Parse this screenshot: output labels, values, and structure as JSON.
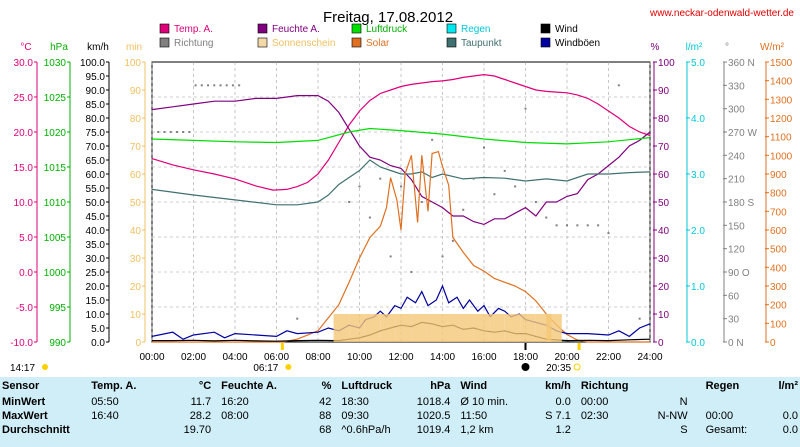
{
  "header": {
    "title": "Freitag, 17.08.2012",
    "site_url": "www.neckar-odenwald-wetter.de"
  },
  "chart_data": {
    "type": "line",
    "title": "Freitag, 17.08.2012",
    "x_ticks": [
      "00:00",
      "02:00",
      "04:00",
      "06:00",
      "08:00",
      "10:00",
      "12:00",
      "14:00",
      "16:00",
      "18:00",
      "20:00",
      "22:00",
      "24:00"
    ],
    "x_range_hours": [
      0,
      24
    ],
    "grid": true,
    "sunrise": "06:17",
    "sunset": "20:35",
    "daylength": "14:17",
    "moon_time": "18:00",
    "axes": {
      "temp": {
        "label": "°C",
        "color": "#e0007a",
        "range": [
          -10,
          30
        ],
        "ticks": [
          "30.0",
          "25.0",
          "20.0",
          "15.0",
          "10.0",
          "5.0",
          "0.0",
          "-5.0",
          "-10.0"
        ]
      },
      "pressure": {
        "label": "hPa",
        "color": "#00b000",
        "range": [
          990,
          1030
        ],
        "ticks": [
          "1030",
          "1025",
          "1020",
          "1015",
          "1010",
          "1005",
          "1000",
          "995",
          "990"
        ]
      },
      "wind": {
        "label": "km/h",
        "color": "#000000",
        "range": [
          0,
          100
        ],
        "ticks": [
          "100.0",
          "95.0",
          "90.0",
          "85.0",
          "80.0",
          "75.0",
          "70.0",
          "65.0",
          "60.0",
          "55.0",
          "50.0",
          "45.0",
          "40.0",
          "35.0",
          "30.0",
          "25.0",
          "20.0",
          "15.0",
          "10.0",
          "5.0",
          "0.0"
        ]
      },
      "sunshine": {
        "label": "min",
        "color": "#f0c060",
        "range": [
          0,
          100
        ],
        "ticks": [
          "100",
          "90",
          "80",
          "70",
          "60",
          "50",
          "40",
          "30",
          "20",
          "10",
          "0"
        ]
      },
      "humidity": {
        "label": "%",
        "color": "#800080",
        "range": [
          0,
          100
        ],
        "ticks": [
          "100",
          "90",
          "80",
          "70",
          "60",
          "50",
          "40",
          "30",
          "20",
          "10",
          "0"
        ]
      },
      "rain": {
        "label": "l/m²",
        "color": "#00c8d8",
        "range": [
          0,
          5
        ],
        "ticks": [
          "5.0",
          "4.0",
          "3.0",
          "2.0",
          "1.0",
          "0.0"
        ]
      },
      "direction": {
        "label": "°",
        "color": "#808080",
        "range": [
          0,
          360
        ],
        "ticks": [
          "360 N",
          "330",
          "300",
          "270 W",
          "240",
          "210",
          "180 S",
          "150",
          "120",
          "90 O",
          "60",
          "30",
          "0 N"
        ]
      },
      "solar": {
        "label": "W/m²",
        "color": "#e07020",
        "range": [
          0,
          1500
        ],
        "ticks": [
          "1500",
          "1400",
          "1300",
          "1200",
          "1100",
          "1000",
          "900",
          "800",
          "700",
          "600",
          "500",
          "400",
          "300",
          "200",
          "100",
          "0"
        ]
      }
    },
    "series": [
      {
        "key": "temp",
        "name": "Temp. A.",
        "color": "#e0007a",
        "axis": "temp",
        "x": [
          0,
          1,
          2,
          3,
          4,
          5,
          5.83,
          6.5,
          7,
          7.5,
          8,
          8.5,
          9,
          9.5,
          10,
          10.5,
          11,
          11.5,
          12,
          12.5,
          13,
          13.5,
          14,
          14.5,
          15,
          15.5,
          16,
          16.5,
          17,
          17.5,
          18,
          18.5,
          19,
          19.5,
          20,
          20.5,
          21,
          21.5,
          22,
          22.5,
          23,
          23.5,
          24
        ],
        "y": [
          16.2,
          15.3,
          14.6,
          14.0,
          13.3,
          12.3,
          11.7,
          11.8,
          12.2,
          12.8,
          14.0,
          16.0,
          18.5,
          21.0,
          23.0,
          24.5,
          25.5,
          26.0,
          26.5,
          26.8,
          27.0,
          27.2,
          27.3,
          27.5,
          27.8,
          28.0,
          28.2,
          28.0,
          27.5,
          27.0,
          26.5,
          26.0,
          25.8,
          25.7,
          25.6,
          25.3,
          24.8,
          24.0,
          23.0,
          22.0,
          20.8,
          20.0,
          19.5
        ]
      },
      {
        "key": "humidity",
        "name": "Feuchte A.",
        "color": "#800080",
        "axis": "humidity",
        "x": [
          0,
          1,
          2,
          3,
          4,
          5,
          6,
          7,
          8,
          8.5,
          9,
          9.5,
          10,
          10.5,
          11,
          11.5,
          12,
          12.5,
          13,
          13.5,
          14,
          14.5,
          15,
          15.5,
          16,
          16.5,
          17,
          17.5,
          18,
          18.5,
          19,
          19.5,
          20,
          20.5,
          21,
          21.5,
          22,
          22.5,
          23,
          23.5,
          24
        ],
        "y": [
          83,
          84,
          85,
          86,
          86,
          87,
          87,
          88,
          88,
          86,
          82,
          76,
          70,
          66,
          65,
          63,
          62,
          58,
          52,
          50,
          48,
          45,
          45,
          43,
          42,
          44,
          44,
          46,
          48,
          45,
          50,
          50,
          52,
          53,
          58,
          60,
          63,
          66,
          70,
          72,
          75
        ]
      },
      {
        "key": "pressure",
        "name": "Luftdruck",
        "color": "#00dd00",
        "axis": "pressure",
        "x": [
          0,
          2,
          4,
          6,
          8,
          9.5,
          10.5,
          12,
          14,
          16,
          18,
          20,
          22,
          23,
          24
        ],
        "y": [
          1019.0,
          1018.8,
          1018.6,
          1018.5,
          1018.8,
          1020.0,
          1020.5,
          1020.2,
          1019.7,
          1019.0,
          1018.5,
          1018.3,
          1018.6,
          1018.9,
          1019.2
        ]
      },
      {
        "key": "dewpoint",
        "name": "Taupunkt",
        "color": "#407070",
        "axis": "temp",
        "x": [
          0,
          2,
          4,
          6,
          7,
          8,
          8.5,
          9,
          9.5,
          10,
          10.5,
          11,
          11.5,
          12,
          12.5,
          13,
          13.5,
          14,
          15,
          16,
          17,
          18,
          19,
          20,
          21,
          22,
          23,
          24
        ],
        "y": [
          11.8,
          11.0,
          10.3,
          9.6,
          9.6,
          10.0,
          11.0,
          12.5,
          13.5,
          14.5,
          16.0,
          15.0,
          14.5,
          14.0,
          14.0,
          14.3,
          13.5,
          14.0,
          13.3,
          13.5,
          13.4,
          13.0,
          13.3,
          13.0,
          14.0,
          14.0,
          14.2,
          14.3
        ]
      },
      {
        "key": "solar",
        "name": "Solar",
        "color": "#e07020",
        "axis": "solar",
        "x": [
          0,
          6.3,
          7,
          8,
          9,
          9.5,
          10,
          10.5,
          11,
          11.3,
          11.5,
          11.8,
          12,
          12.2,
          12.5,
          12.8,
          13,
          13.3,
          13.5,
          13.8,
          14,
          14.3,
          14.5,
          15,
          15.5,
          16,
          16.5,
          17,
          17.5,
          18,
          18.5,
          19,
          19.5,
          20,
          20.5,
          21,
          24
        ],
        "y": [
          0,
          0,
          15,
          60,
          200,
          320,
          450,
          560,
          620,
          720,
          880,
          760,
          600,
          900,
          1000,
          640,
          1000,
          700,
          1010,
          1020,
          940,
          840,
          560,
          480,
          410,
          380,
          340,
          320,
          300,
          270,
          220,
          150,
          90,
          40,
          10,
          0,
          0
        ]
      },
      {
        "key": "wind",
        "name": "Wind",
        "color": "#000000",
        "axis": "wind",
        "x": [
          0,
          1,
          2,
          3,
          4,
          5,
          6,
          7,
          8,
          9,
          9.5,
          10,
          10.5,
          11,
          11.5,
          12,
          12.5,
          13,
          13.5,
          14,
          14.5,
          15,
          15.5,
          16,
          16.5,
          17,
          17.5,
          18,
          18.5,
          19,
          20,
          21,
          22,
          23,
          24
        ],
        "y": [
          0.5,
          0.5,
          0.6,
          0.4,
          0.6,
          0.4,
          0.3,
          0.5,
          0.6,
          0.5,
          1.0,
          1.5,
          2.5,
          4.0,
          5.0,
          6.0,
          5.5,
          7.0,
          6.5,
          5.5,
          6.0,
          4.5,
          5.0,
          4.0,
          3.5,
          4.0,
          3.0,
          3.0,
          2.0,
          1.0,
          0.5,
          0.6,
          0.5,
          0.8,
          1.0
        ]
      },
      {
        "key": "gust",
        "name": "Windböen",
        "color": "#0000a0",
        "axis": "wind",
        "x": [
          0,
          1,
          1.5,
          2,
          3,
          3.5,
          4,
          5,
          6,
          6.5,
          7,
          8,
          8.5,
          9,
          9.5,
          10,
          10.3,
          10.7,
          11,
          11.3,
          11.7,
          12,
          12.3,
          12.7,
          13,
          13.3,
          13.7,
          14,
          14.3,
          14.7,
          15,
          15.3,
          15.7,
          16,
          16.3,
          16.7,
          17,
          17.3,
          17.7,
          18,
          18.5,
          19,
          19.5,
          20,
          21,
          22,
          22.5,
          23,
          23.5,
          24
        ],
        "y": [
          2.0,
          3.5,
          1.0,
          2.5,
          3.5,
          1.5,
          3.0,
          2.5,
          2.0,
          4.0,
          3.0,
          3.5,
          5.0,
          4.0,
          6.0,
          5.0,
          8.0,
          9.0,
          11.0,
          9.0,
          13.0,
          12.0,
          16.0,
          14.0,
          18.0,
          13.0,
          15.0,
          20.0,
          14.0,
          16.0,
          12.0,
          15.0,
          11.0,
          13.0,
          9.0,
          12.0,
          11.0,
          9.0,
          10.0,
          8.0,
          7.0,
          6.0,
          4.0,
          3.0,
          3.0,
          2.5,
          4.0,
          2.0,
          5.0,
          6.5
        ]
      },
      {
        "key": "direction",
        "name": "Richtung",
        "color": "#808080",
        "axis": "direction",
        "style": "dots",
        "x": [
          0.3,
          0.6,
          0.9,
          1.2,
          1.5,
          1.8,
          2.1,
          2.4,
          2.7,
          3.0,
          3.3,
          3.6,
          3.9,
          4.2,
          7,
          9.5,
          10,
          10.5,
          11,
          11.5,
          12,
          12.5,
          13,
          13.5,
          14,
          14.5,
          15,
          15.5,
          16,
          16.5,
          17,
          17.5,
          18,
          18.5,
          19,
          19.5,
          20,
          20.5,
          21,
          21.5,
          22,
          22.5,
          23.5
        ],
        "y": [
          270,
          270,
          270,
          270,
          270,
          270,
          330,
          330,
          330,
          330,
          330,
          330,
          330,
          330,
          30,
          180,
          200,
          160,
          210,
          110,
          200,
          90,
          180,
          260,
          110,
          130,
          170,
          210,
          250,
          190,
          220,
          200,
          300,
          180,
          160,
          150,
          150,
          150,
          150,
          150,
          140,
          330,
          30
        ]
      },
      {
        "key": "sunshine",
        "name": "Sonnenschein",
        "color": "#f5c878",
        "axis": "sunshine",
        "style": "bars",
        "x": [
          8.75,
          9.5,
          10.25,
          11,
          11.75,
          12.5,
          13.25,
          14,
          14.75,
          15.5,
          16.25,
          17,
          17.75,
          18.5,
          19.0
        ],
        "y": [
          10,
          10,
          10,
          10,
          10,
          10,
          10,
          10,
          10,
          10,
          10,
          10,
          10,
          10,
          10
        ]
      }
    ],
    "legend": [
      {
        "name": "Temp. A.",
        "color": "#e0007a",
        "text_color": "#e0007a"
      },
      {
        "name": "Richtung",
        "color": "#808080",
        "text_color": "#808080"
      },
      {
        "name": "Feuchte A.",
        "color": "#800080",
        "text_color": "#800080"
      },
      {
        "name": "Sonnenschein",
        "color": "#f5d8a8",
        "text_color": "#f0c060"
      },
      {
        "name": "Luftdruck",
        "color": "#00e000",
        "text_color": "#00b000"
      },
      {
        "name": "Solar",
        "color": "#e07020",
        "text_color": "#e07020"
      },
      {
        "name": "Regen",
        "color": "#00e8f0",
        "text_color": "#00c8d8"
      },
      {
        "name": "Taupunkt",
        "color": "#407070",
        "text_color": "#407070"
      },
      {
        "name": "Wind",
        "color": "#000000",
        "text_color": "#000000"
      },
      {
        "name": "Windböen",
        "color": "#0000a0",
        "text_color": "#000000"
      }
    ]
  },
  "stats": {
    "headers": [
      "Sensor",
      "Temp. A.",
      "°C",
      "Feuchte A.",
      "%",
      "Luftdruck",
      "hPa",
      "Wind",
      "km/h",
      "Richtung",
      "",
      "Regen",
      "l/m²"
    ],
    "rows": [
      [
        "MinWert",
        "05:50",
        "11.7",
        "16:20",
        "42",
        "18:30",
        "1018.4",
        "Ø 10 min.",
        "0.0",
        "00:00",
        "N",
        "",
        ""
      ],
      [
        "MaxWert",
        "16:40",
        "28.2",
        "08:00",
        "88",
        "09:30",
        "1020.5",
        "11:50",
        "S 7.1",
        "02:30",
        "N-NW",
        "00:00",
        "0.0"
      ],
      [
        "Durchschnitt",
        "",
        "19.70",
        "",
        "68",
        "^0.6hPa/h",
        "1019.4",
        "1,2 km",
        "1.2",
        "",
        "S",
        "Gesamt:",
        "0.0"
      ]
    ]
  }
}
